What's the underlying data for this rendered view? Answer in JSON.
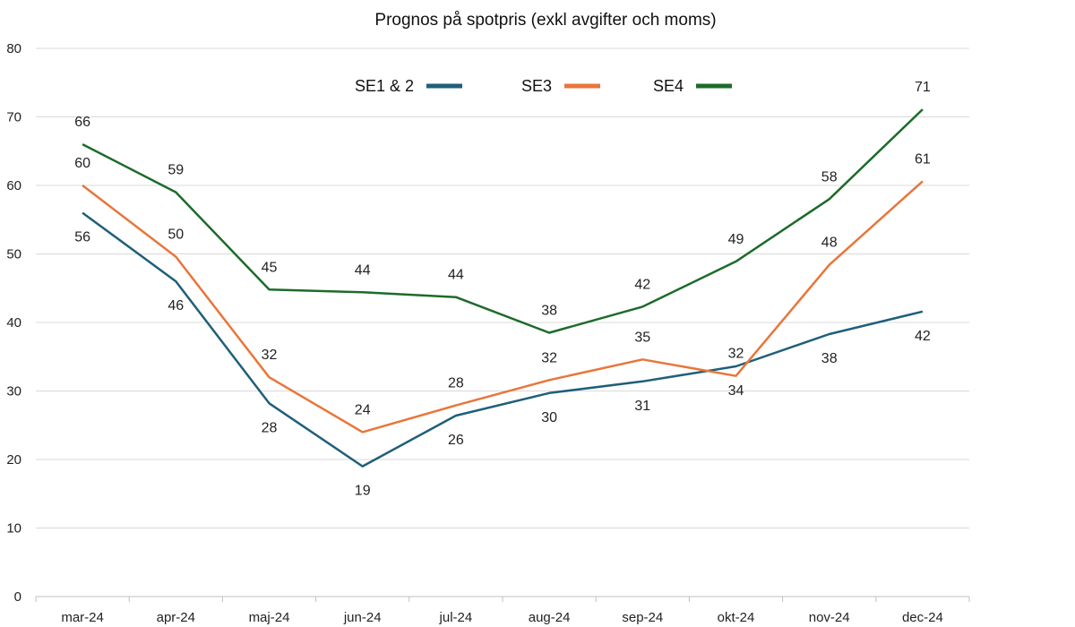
{
  "chart_data": {
    "type": "line",
    "title": "Prognos på spotpris (exkl avgifter och moms)",
    "xlabel": "",
    "ylabel": "",
    "categories": [
      "mar-24",
      "apr-24",
      "maj-24",
      "jun-24",
      "jul-24",
      "aug-24",
      "sep-24",
      "okt-24",
      "nov-24",
      "dec-24"
    ],
    "ylim": [
      0,
      80
    ],
    "yticks": [
      0,
      10,
      20,
      30,
      40,
      50,
      60,
      70,
      80
    ],
    "grid": true,
    "legend": "top",
    "series": [
      {
        "name": "SE1 & 2",
        "color": "#1f5f7a",
        "values": [
          56,
          46,
          28,
          19,
          26,
          30,
          31,
          34,
          38,
          42
        ],
        "plot_values": [
          56,
          46,
          28.2,
          19,
          26.4,
          29.7,
          31.4,
          33.6,
          38.3,
          41.6
        ],
        "label_pos": [
          "below",
          "below",
          "below",
          "below",
          "below",
          "below",
          "below",
          "below",
          "below",
          "below"
        ]
      },
      {
        "name": "SE3",
        "color": "#e8763a",
        "values": [
          60,
          50,
          32,
          24,
          28,
          32,
          35,
          32,
          48,
          61
        ],
        "plot_values": [
          60,
          49.6,
          32,
          24,
          27.9,
          31.6,
          34.6,
          32.2,
          48.4,
          60.6
        ],
        "label_pos": [
          "above",
          "above",
          "above",
          "above",
          "above",
          "above",
          "above",
          "above",
          "above",
          "above"
        ]
      },
      {
        "name": "SE4",
        "color": "#1d6b2a",
        "values": [
          66,
          59,
          45,
          44,
          44,
          38,
          42,
          49,
          58,
          71
        ],
        "plot_values": [
          66,
          59,
          44.8,
          44.4,
          43.7,
          38.5,
          42.3,
          48.9,
          58,
          71.1
        ],
        "label_pos": [
          "above",
          "above",
          "above",
          "above",
          "above",
          "above",
          "above",
          "above",
          "above",
          "above"
        ]
      }
    ]
  }
}
